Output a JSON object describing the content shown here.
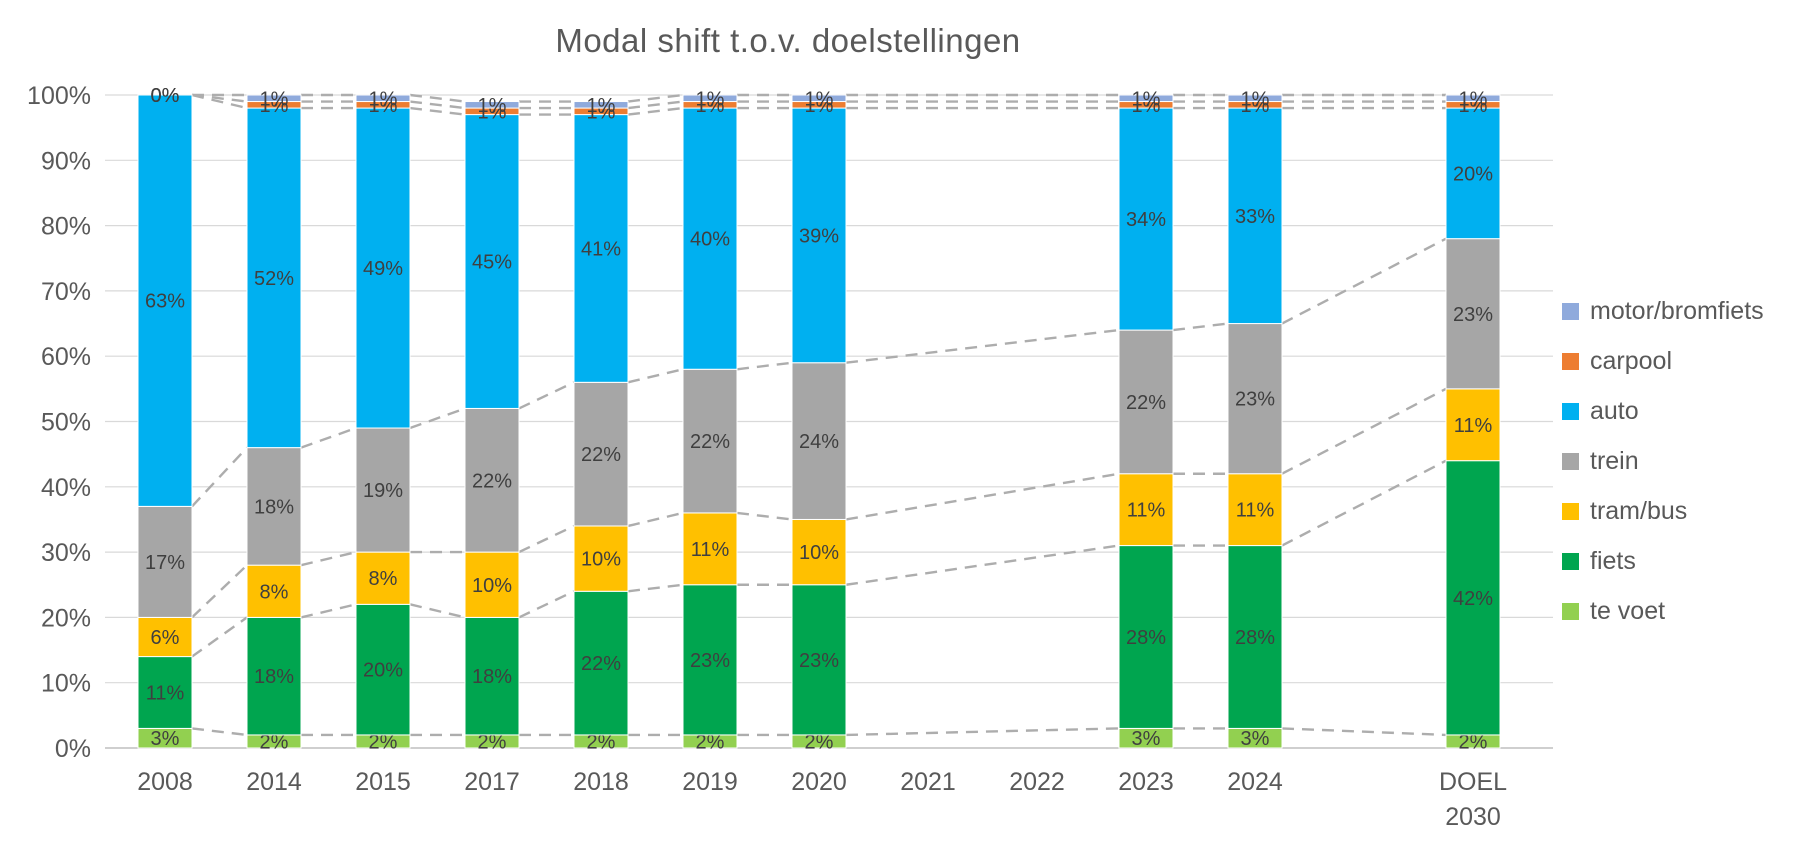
{
  "title": "Modal shift t.o.v. doelstellingen",
  "chart_data": {
    "type": "bar",
    "subtype": "stacked-100-percent-column",
    "title": "Modal shift t.o.v. doelstellingen",
    "grid": true,
    "series_lines_dashed": true,
    "legend_position": "right",
    "xlabel": "",
    "ylabel": "",
    "y_axis": {
      "min": 0,
      "max": 100,
      "step": 10,
      "tick_labels": [
        "0%",
        "10%",
        "20%",
        "30%",
        "40%",
        "50%",
        "60%",
        "70%",
        "80%",
        "90%",
        "100%"
      ]
    },
    "categories": [
      "2008",
      "2014",
      "2015",
      "2017",
      "2018",
      "2019",
      "2020",
      "2021",
      "2022",
      "2023",
      "2024",
      "",
      "DOEL 2030"
    ],
    "stack_order_bottom_to_top": [
      "te voet",
      "fiets",
      "tram/bus",
      "trein",
      "auto",
      "carpool",
      "motor/bromfiets"
    ],
    "series": [
      {
        "name": "motor/bromfiets",
        "color": "#8FAADC",
        "values": [
          0,
          1,
          1,
          1,
          1,
          1,
          1,
          null,
          null,
          1,
          1,
          null,
          1
        ]
      },
      {
        "name": "carpool",
        "color": "#ED7D31",
        "values": [
          0,
          1,
          1,
          1,
          1,
          1,
          1,
          null,
          null,
          1,
          1,
          null,
          1
        ]
      },
      {
        "name": "auto",
        "color": "#00B0F0",
        "values": [
          63,
          52,
          49,
          45,
          41,
          40,
          39,
          null,
          null,
          34,
          33,
          null,
          20
        ]
      },
      {
        "name": "trein",
        "color": "#A6A6A6",
        "values": [
          17,
          18,
          19,
          22,
          22,
          22,
          24,
          null,
          null,
          22,
          23,
          null,
          23
        ]
      },
      {
        "name": "tram/bus",
        "color": "#FFC000",
        "values": [
          6,
          8,
          8,
          10,
          10,
          11,
          10,
          null,
          null,
          11,
          11,
          null,
          11
        ]
      },
      {
        "name": "fiets",
        "color": "#00A54F",
        "values": [
          11,
          18,
          20,
          18,
          22,
          23,
          23,
          null,
          null,
          28,
          28,
          null,
          42
        ]
      },
      {
        "name": "te voet",
        "color": "#92D050",
        "values": [
          3,
          2,
          2,
          2,
          2,
          2,
          2,
          null,
          null,
          3,
          3,
          null,
          2
        ]
      }
    ],
    "data_label_suffix": "%",
    "colors": {
      "title_text": "#595959",
      "axis_text": "#595959",
      "segment_label_text": "#3f3f3f",
      "gridline": "#d9d9d9",
      "axis_line": "#bfbfbf",
      "series_line": "#adadad",
      "background": "#ffffff"
    }
  }
}
